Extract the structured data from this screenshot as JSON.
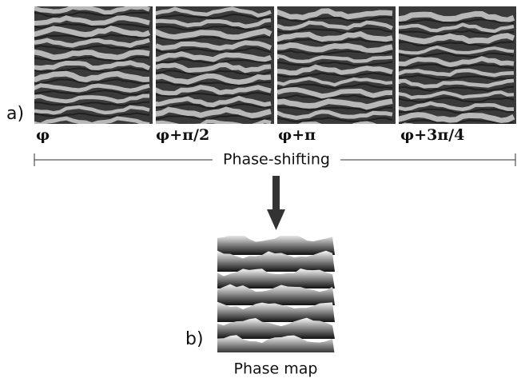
{
  "panel_a": {
    "label": "a)",
    "frames": [
      "φ",
      "φ+π/2",
      "φ+π",
      "φ+3π/4"
    ],
    "bracket_label": "Phase-shifting"
  },
  "panel_b": {
    "label": "b)",
    "caption": "Phase map"
  }
}
